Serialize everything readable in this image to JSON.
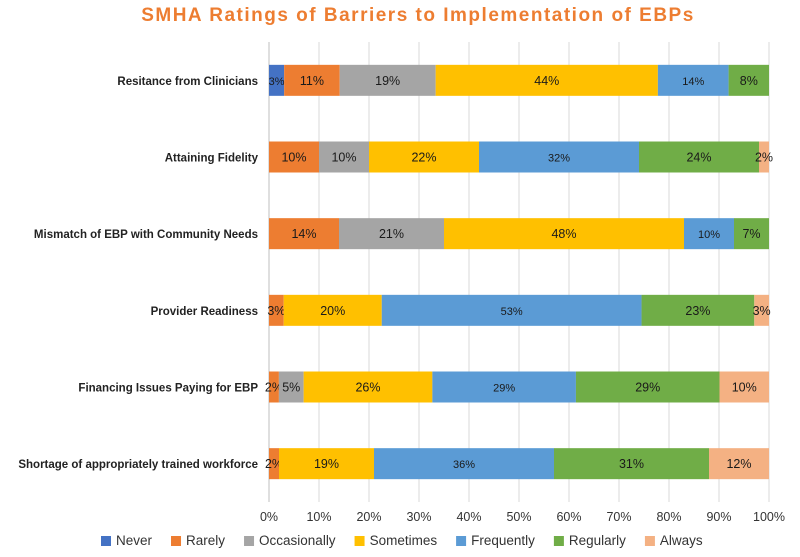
{
  "chart_data": {
    "type": "bar",
    "orientation": "horizontal",
    "stacked": true,
    "percent_stacked": true,
    "title": "SMHA Ratings of Barriers to Implementation of EBPs",
    "title_color": "#ED7D31",
    "xlabel": "",
    "ylabel": "",
    "xlim": [
      0,
      100
    ],
    "x_ticks": [
      "0%",
      "10%",
      "20%",
      "30%",
      "40%",
      "50%",
      "60%",
      "70%",
      "80%",
      "90%",
      "100%"
    ],
    "grid": "vertical",
    "legend_position": "bottom",
    "categories": [
      "Resitance from Clinicians",
      "Attaining Fidelity",
      "Mismatch of EBP with Community Needs",
      "Provider Readiness",
      "Financing Issues Paying for EBP",
      "Shortage of appropriately trained workforce"
    ],
    "series": [
      {
        "name": "Never",
        "color": "#4472C4",
        "values": [
          3,
          0,
          0,
          0,
          0,
          0
        ],
        "labels": [
          "3%",
          "",
          "",
          "",
          "",
          ""
        ]
      },
      {
        "name": "Rarely",
        "color": "#ED7D31",
        "values": [
          11,
          10,
          14,
          3,
          2,
          2
        ],
        "labels": [
          "11%",
          "10%",
          "14%",
          "3%",
          "2%",
          "2%"
        ]
      },
      {
        "name": "Occasionally",
        "color": "#A5A5A5",
        "values": [
          19,
          10,
          21,
          0,
          5,
          0
        ],
        "labels": [
          "19%",
          "10%",
          "21%",
          "",
          "5%",
          ""
        ]
      },
      {
        "name": "Sometimes",
        "color": "#FFC000",
        "values": [
          44,
          22,
          48,
          20,
          26,
          19
        ],
        "labels": [
          "44%",
          "22%",
          "48%",
          "20%",
          "26%",
          "19%"
        ]
      },
      {
        "name": "Frequently",
        "color": "#5B9BD5",
        "values": [
          14,
          32,
          10,
          53,
          29,
          36
        ],
        "labels": [
          "14%",
          "32%",
          "10%",
          "53%",
          "29%",
          "36%"
        ]
      },
      {
        "name": "Regularly",
        "color": "#70AD47",
        "values": [
          8,
          24,
          7,
          23,
          29,
          31
        ],
        "labels": [
          "8%",
          "24%",
          "7%",
          "23%",
          "29%",
          "31%"
        ]
      },
      {
        "name": "Always",
        "color": "#F4B183",
        "values": [
          0,
          2,
          0,
          3,
          10,
          12
        ],
        "labels": [
          "",
          "2%",
          "",
          "3%",
          "10%",
          "12%"
        ]
      }
    ]
  }
}
